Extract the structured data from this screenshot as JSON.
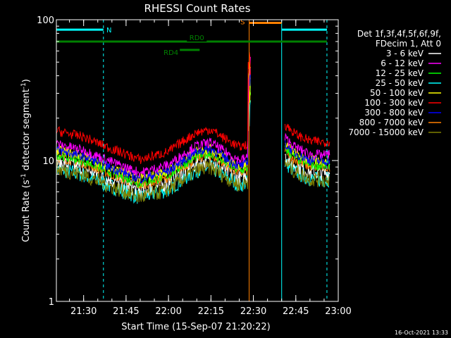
{
  "chart_data": {
    "type": "line",
    "title": "RHESSI Count Rates",
    "xlabel": "Start Time (15-Sep-07 21:20:22)",
    "ylabel_main": "Count Rate (s",
    "ylabel_sup": "-1",
    "ylabel_rest": " detector segment",
    "ylabel_sup2": "-1",
    "ylabel_end": ")",
    "y_scale": "log",
    "ylim": [
      1,
      100
    ],
    "y_ticks": [
      {
        "value": 1,
        "label": "1"
      },
      {
        "value": 10,
        "label": "10"
      },
      {
        "value": 100,
        "label": "100"
      }
    ],
    "x_range": [
      "21:20:22",
      "23:00"
    ],
    "x_ticks": [
      {
        "time": "21:30",
        "label": "21:30"
      },
      {
        "time": "21:45",
        "label": "21:45"
      },
      {
        "time": "22:00",
        "label": "22:00"
      },
      {
        "time": "22:15",
        "label": "22:15"
      },
      {
        "time": "22:30",
        "label": "22:30"
      },
      {
        "time": "22:45",
        "label": "22:45"
      },
      {
        "time": "23:00",
        "label": "23:00"
      }
    ],
    "grid": false,
    "legend_position": "right",
    "legend_header": [
      "Det 1f,3f,4f,5f,6f,9f,",
      "FDecim 1, Att 0"
    ],
    "series": [
      {
        "name": "3 - 6 keV",
        "color": "#ffffff",
        "offset": 0.78
      },
      {
        "name": "6 - 12 keV",
        "color": "#ff00ff",
        "offset": 1.05
      },
      {
        "name": "12 - 25 keV",
        "color": "#00ff00",
        "offset": 0.88
      },
      {
        "name": "25 - 50 keV",
        "color": "#00ffff",
        "offset": 0.7
      },
      {
        "name": "50 - 100 keV",
        "color": "#ffff00",
        "offset": 0.95
      },
      {
        "name": "100 - 300 keV",
        "color": "#ff0000",
        "offset": 1.3
      },
      {
        "name": "300 - 800 keV",
        "color": "#0000ff",
        "offset": 0.95
      },
      {
        "name": "800 - 7000 keV",
        "color": "#ff8000",
        "offset": 0.85
      },
      {
        "name": "7000 - 15000 keV",
        "color": "#808000",
        "offset": 0.7
      }
    ],
    "profile": {
      "times": [
        "21:20:22",
        "21:30",
        "21:40",
        "21:50",
        "22:00",
        "22:05",
        "22:10",
        "22:15",
        "22:20",
        "22:25",
        "22:28",
        "22:29",
        "22:30",
        "22:35",
        "22:38",
        "22:40",
        "22:45",
        "22:50",
        "22:55",
        "22:57"
      ],
      "base": [
        12.5,
        11.3,
        9.3,
        7.8,
        8.9,
        10.5,
        12.2,
        12.8,
        11.0,
        9.6,
        10.0,
        14.0,
        null,
        null,
        null,
        14.5,
        11.8,
        10.6,
        10.4,
        10.6
      ]
    },
    "gaps": [
      {
        "from": "22:29",
        "to": "22:41"
      }
    ],
    "vertical_lines": [
      {
        "time": "21:20:22",
        "color": "#00ffff",
        "style": "solid"
      },
      {
        "time": "21:37",
        "color": "#00ffff",
        "style": "dashed"
      },
      {
        "time": "22:40",
        "color": "#00ffff",
        "style": "solid"
      },
      {
        "time": "22:56",
        "color": "#00ffff",
        "style": "dashed"
      },
      {
        "time": "22:28:30",
        "color": "#ff8000",
        "style": "solid"
      }
    ],
    "annotations": [
      {
        "label": "N",
        "color": "#00ffff",
        "from": "21:20:22",
        "to": "21:37",
        "level": 85
      },
      {
        "label": "N",
        "color": "#00ffff",
        "from": "22:40",
        "to": "22:56",
        "level": 85
      },
      {
        "label": "S",
        "color": "#ff8000",
        "from": "22:28:30",
        "to": "22:40",
        "level": 95
      },
      {
        "label": "RD0",
        "color": "#008000",
        "from": "21:20:22",
        "to": "22:56",
        "level": 70
      },
      {
        "label": "RD4",
        "color": "#008000",
        "from": "22:04",
        "to": "22:11",
        "level": 61
      }
    ]
  },
  "footer": {
    "timestamp": "16-Oct-2021 13:33"
  }
}
